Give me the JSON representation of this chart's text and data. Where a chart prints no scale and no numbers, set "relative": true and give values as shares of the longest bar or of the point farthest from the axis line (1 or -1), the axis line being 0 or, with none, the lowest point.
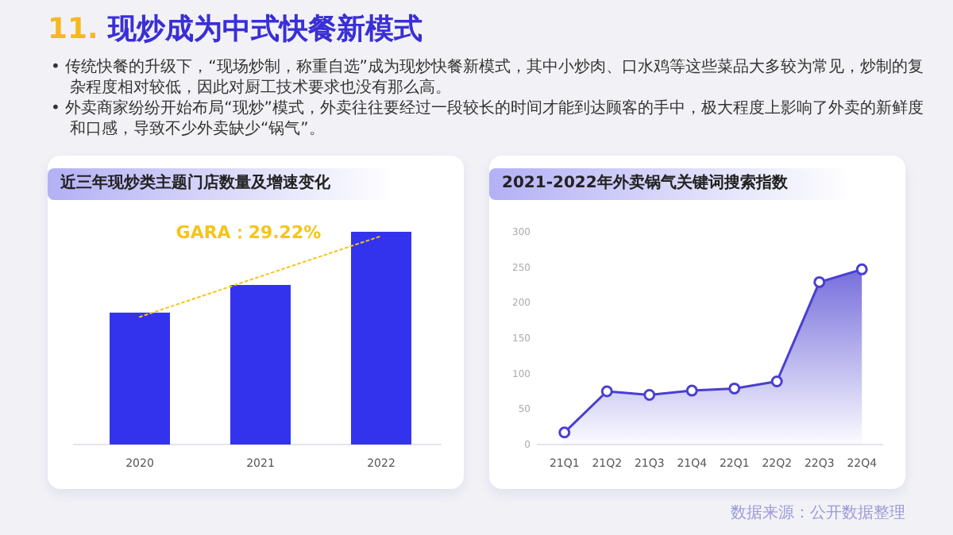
{
  "chart_data": [
    {
      "type": "other",
      "title": "11. 现炒成为中式快餐新模式",
      "annotations": [
        "• 传统快餐的升级下，“现场炒制，称重自选”成为现炒快餐新模式，其中小炒肉、口水鸡等这些菜品大多较为常见，炒制的复杂程度相对较低，因此对厨工技术要求也没有那么高。",
        "• 外卖商家纷纷开始布局“现炒”模式，外卖往往要经过一段较长的时间才能到达顾客的手中，极大程度上影响了外卖的新鲜度和口感，导致不少外卖缺少“锅气”。",
        "数据来源：公开数据整理"
      ]
    },
    {
      "type": "bar",
      "title": "近三年现炒类主题门店数量及增速变化",
      "categories": [
        "2020",
        "2021",
        "2022"
      ],
      "relative": true,
      "annotations": [
        "GARA：29.22%"
      ],
      "series": [
        {
          "type": "bar",
          "color": "#3333ee",
          "values": [
            0.62,
            0.75,
            1
          ]
        },
        {
          "type": "line",
          "color": "#f5c518",
          "line_style": "dotted",
          "values": [
            0.6,
            0.79,
            0.98
          ]
        }
      ]
    },
    {
      "type": "area",
      "title": "2021-2022年外卖锅气关键词搜索指数",
      "categories": [
        "21Q1",
        "21Q2",
        "21Q3",
        "21Q4",
        "22Q1",
        "22Q2",
        "22Q3",
        "22Q4"
      ],
      "ylim": [
        0,
        300
      ],
      "yticks": [
        0,
        50,
        100,
        150,
        200,
        250,
        300
      ],
      "marker": "circle",
      "series": [
        {
          "color": "#4a3fd0",
          "values": [
            17,
            75,
            70,
            76,
            79,
            89,
            229,
            247
          ]
        }
      ]
    }
  ]
}
